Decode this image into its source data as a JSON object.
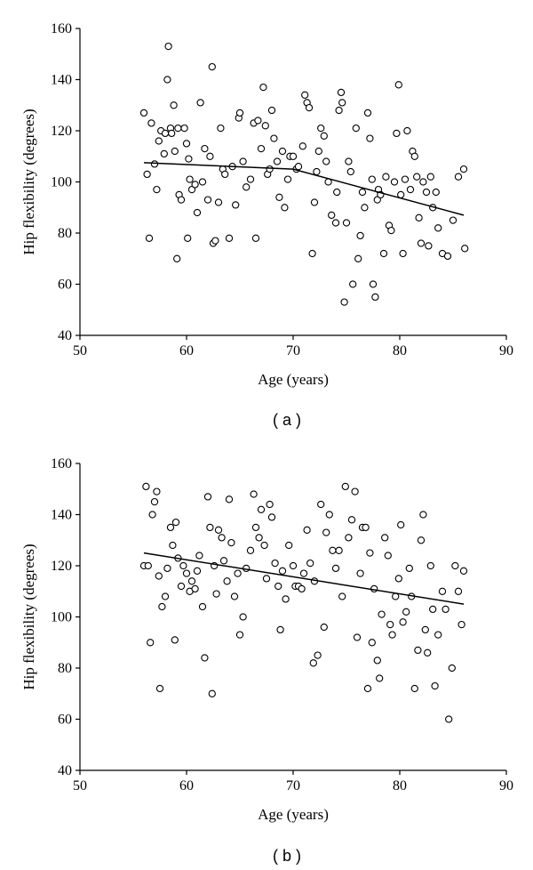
{
  "chart_data": [
    {
      "type": "scatter",
      "panel_label": "( a )",
      "xlabel": "Age (years)",
      "ylabel": "Hip flexibility (degrees)",
      "xlim": [
        50,
        90
      ],
      "ylim": [
        40,
        160
      ],
      "xticks": [
        "50",
        "60",
        "70",
        "80",
        "90"
      ],
      "yticks": [
        "40",
        "60",
        "80",
        "100",
        "120",
        "140",
        "160"
      ],
      "grid": false,
      "trend_line": [
        [
          56,
          107.5
        ],
        [
          70,
          105
        ],
        [
          86,
          87
        ]
      ],
      "points": [
        [
          56,
          127
        ],
        [
          56.3,
          103
        ],
        [
          56.5,
          78
        ],
        [
          56.7,
          123
        ],
        [
          57,
          107
        ],
        [
          57.2,
          97
        ],
        [
          57.4,
          116
        ],
        [
          57.6,
          120
        ],
        [
          57.9,
          111
        ],
        [
          58,
          119
        ],
        [
          58.2,
          140
        ],
        [
          58.3,
          153
        ],
        [
          58.5,
          121
        ],
        [
          58.6,
          119
        ],
        [
          58.8,
          130
        ],
        [
          58.9,
          112
        ],
        [
          59.1,
          70
        ],
        [
          59.2,
          121
        ],
        [
          59.3,
          95
        ],
        [
          59.5,
          93
        ],
        [
          59.8,
          121
        ],
        [
          60,
          115
        ],
        [
          60.1,
          78
        ],
        [
          60.2,
          109
        ],
        [
          60.3,
          101
        ],
        [
          60.5,
          97
        ],
        [
          60.8,
          99
        ],
        [
          61,
          88
        ],
        [
          61.3,
          131
        ],
        [
          61.5,
          100
        ],
        [
          61.7,
          113
        ],
        [
          62,
          93
        ],
        [
          62.2,
          110
        ],
        [
          62.4,
          145
        ],
        [
          62.5,
          76
        ],
        [
          62.7,
          77
        ],
        [
          63,
          92
        ],
        [
          63.2,
          121
        ],
        [
          63.4,
          105
        ],
        [
          63.6,
          103
        ],
        [
          64,
          78
        ],
        [
          64.3,
          106
        ],
        [
          64.6,
          91
        ],
        [
          64.9,
          125
        ],
        [
          65,
          127
        ],
        [
          65.3,
          108
        ],
        [
          65.6,
          98
        ],
        [
          66,
          101
        ],
        [
          66.3,
          123
        ],
        [
          66.5,
          78
        ],
        [
          66.7,
          124
        ],
        [
          67,
          113
        ],
        [
          67.2,
          137
        ],
        [
          67.4,
          122
        ],
        [
          67.6,
          103
        ],
        [
          67.8,
          105
        ],
        [
          68,
          128
        ],
        [
          68.2,
          117
        ],
        [
          68.5,
          108
        ],
        [
          68.7,
          94
        ],
        [
          69,
          112
        ],
        [
          69.2,
          90
        ],
        [
          69.5,
          101
        ],
        [
          69.7,
          110
        ],
        [
          70,
          110
        ],
        [
          70.3,
          105
        ],
        [
          70.5,
          106
        ],
        [
          70.9,
          114
        ],
        [
          71.1,
          134
        ],
        [
          71.3,
          131
        ],
        [
          71.5,
          129
        ],
        [
          71.8,
          72
        ],
        [
          72,
          92
        ],
        [
          72.2,
          104
        ],
        [
          72.4,
          112
        ],
        [
          72.6,
          121
        ],
        [
          72.9,
          118
        ],
        [
          73.1,
          108
        ],
        [
          73.3,
          100
        ],
        [
          73.6,
          87
        ],
        [
          74,
          84
        ],
        [
          74.1,
          96
        ],
        [
          74.3,
          128
        ],
        [
          74.5,
          135
        ],
        [
          74.6,
          131
        ],
        [
          74.8,
          53
        ],
        [
          75,
          84
        ],
        [
          75.2,
          108
        ],
        [
          75.4,
          104
        ],
        [
          75.6,
          60
        ],
        [
          75.9,
          121
        ],
        [
          76.1,
          70
        ],
        [
          76.3,
          79
        ],
        [
          76.5,
          96
        ],
        [
          76.7,
          90
        ],
        [
          77,
          127
        ],
        [
          77.2,
          117
        ],
        [
          77.4,
          101
        ],
        [
          77.5,
          60
        ],
        [
          77.7,
          55
        ],
        [
          77.9,
          93
        ],
        [
          78,
          97
        ],
        [
          78.2,
          95
        ],
        [
          78.5,
          72
        ],
        [
          78.7,
          102
        ],
        [
          79,
          83
        ],
        [
          79.2,
          81
        ],
        [
          79.5,
          100
        ],
        [
          79.7,
          119
        ],
        [
          79.9,
          138
        ],
        [
          80.1,
          95
        ],
        [
          80.3,
          72
        ],
        [
          80.5,
          101
        ],
        [
          80.7,
          120
        ],
        [
          81,
          97
        ],
        [
          81.2,
          112
        ],
        [
          81.4,
          110
        ],
        [
          81.6,
          102
        ],
        [
          81.8,
          86
        ],
        [
          82,
          76
        ],
        [
          82.2,
          100
        ],
        [
          82.5,
          96
        ],
        [
          82.7,
          75
        ],
        [
          82.9,
          102
        ],
        [
          83.1,
          90
        ],
        [
          83.4,
          96
        ],
        [
          83.6,
          82
        ],
        [
          84,
          72
        ],
        [
          84.5,
          71
        ],
        [
          85,
          85
        ],
        [
          85.5,
          102
        ],
        [
          86,
          105
        ],
        [
          86.1,
          74
        ]
      ]
    },
    {
      "type": "scatter",
      "panel_label": "( b )",
      "xlabel": "Age (years)",
      "ylabel": "Hip flexibility (degrees)",
      "xlim": [
        50,
        90
      ],
      "ylim": [
        40,
        160
      ],
      "xticks": [
        "50",
        "60",
        "70",
        "80",
        "90"
      ],
      "yticks": [
        "40",
        "60",
        "80",
        "100",
        "120",
        "140",
        "160"
      ],
      "grid": false,
      "trend_line": [
        [
          56,
          125
        ],
        [
          86,
          105
        ]
      ],
      "points": [
        [
          56,
          120
        ],
        [
          56.2,
          151
        ],
        [
          56.4,
          120
        ],
        [
          56.6,
          90
        ],
        [
          56.8,
          140
        ],
        [
          57,
          145
        ],
        [
          57.2,
          149
        ],
        [
          57.4,
          116
        ],
        [
          57.5,
          72
        ],
        [
          57.7,
          104
        ],
        [
          58,
          108
        ],
        [
          58.2,
          119
        ],
        [
          58.5,
          135
        ],
        [
          58.7,
          128
        ],
        [
          58.9,
          91
        ],
        [
          59,
          137
        ],
        [
          59.2,
          123
        ],
        [
          59.5,
          112
        ],
        [
          59.7,
          120
        ],
        [
          60,
          117
        ],
        [
          60.3,
          110
        ],
        [
          60.5,
          114
        ],
        [
          60.8,
          111
        ],
        [
          61,
          118
        ],
        [
          61.2,
          124
        ],
        [
          61.5,
          104
        ],
        [
          61.7,
          84
        ],
        [
          62,
          147
        ],
        [
          62.2,
          135
        ],
        [
          62.4,
          70
        ],
        [
          62.6,
          120
        ],
        [
          62.8,
          109
        ],
        [
          63,
          134
        ],
        [
          63.3,
          131
        ],
        [
          63.5,
          122
        ],
        [
          63.8,
          114
        ],
        [
          64,
          146
        ],
        [
          64.2,
          129
        ],
        [
          64.5,
          108
        ],
        [
          64.8,
          117
        ],
        [
          65,
          93
        ],
        [
          65.3,
          100
        ],
        [
          65.6,
          119
        ],
        [
          66,
          126
        ],
        [
          66.3,
          148
        ],
        [
          66.5,
          135
        ],
        [
          66.8,
          131
        ],
        [
          67,
          142
        ],
        [
          67.3,
          128
        ],
        [
          67.5,
          115
        ],
        [
          67.8,
          144
        ],
        [
          68,
          139
        ],
        [
          68.3,
          121
        ],
        [
          68.6,
          112
        ],
        [
          68.8,
          95
        ],
        [
          69,
          118
        ],
        [
          69.3,
          107
        ],
        [
          69.6,
          128
        ],
        [
          70,
          120
        ],
        [
          70.2,
          112
        ],
        [
          70.5,
          112
        ],
        [
          70.8,
          111
        ],
        [
          71,
          117
        ],
        [
          71.3,
          134
        ],
        [
          71.6,
          121
        ],
        [
          71.9,
          82
        ],
        [
          72,
          114
        ],
        [
          72.3,
          85
        ],
        [
          72.6,
          144
        ],
        [
          72.9,
          96
        ],
        [
          73.1,
          133
        ],
        [
          73.4,
          140
        ],
        [
          73.7,
          126
        ],
        [
          74,
          119
        ],
        [
          74.3,
          126
        ],
        [
          74.6,
          108
        ],
        [
          74.9,
          151
        ],
        [
          75.2,
          131
        ],
        [
          75.5,
          138
        ],
        [
          75.8,
          149
        ],
        [
          76,
          92
        ],
        [
          76.3,
          117
        ],
        [
          76.5,
          135
        ],
        [
          76.8,
          135
        ],
        [
          77,
          72
        ],
        [
          77.2,
          125
        ],
        [
          77.4,
          90
        ],
        [
          77.6,
          111
        ],
        [
          77.9,
          83
        ],
        [
          78.1,
          76
        ],
        [
          78.3,
          101
        ],
        [
          78.6,
          131
        ],
        [
          78.9,
          124
        ],
        [
          79.1,
          97
        ],
        [
          79.3,
          93
        ],
        [
          79.6,
          108
        ],
        [
          79.9,
          115
        ],
        [
          80.1,
          136
        ],
        [
          80.3,
          98
        ],
        [
          80.6,
          102
        ],
        [
          80.9,
          119
        ],
        [
          81.1,
          108
        ],
        [
          81.4,
          72
        ],
        [
          81.7,
          87
        ],
        [
          82,
          130
        ],
        [
          82.2,
          140
        ],
        [
          82.4,
          95
        ],
        [
          82.6,
          86
        ],
        [
          82.9,
          120
        ],
        [
          83.1,
          103
        ],
        [
          83.3,
          73
        ],
        [
          83.6,
          93
        ],
        [
          84,
          110
        ],
        [
          84.3,
          103
        ],
        [
          84.6,
          60
        ],
        [
          84.9,
          80
        ],
        [
          85.2,
          120
        ],
        [
          85.5,
          110
        ],
        [
          85.8,
          97
        ],
        [
          86,
          118
        ]
      ]
    }
  ]
}
